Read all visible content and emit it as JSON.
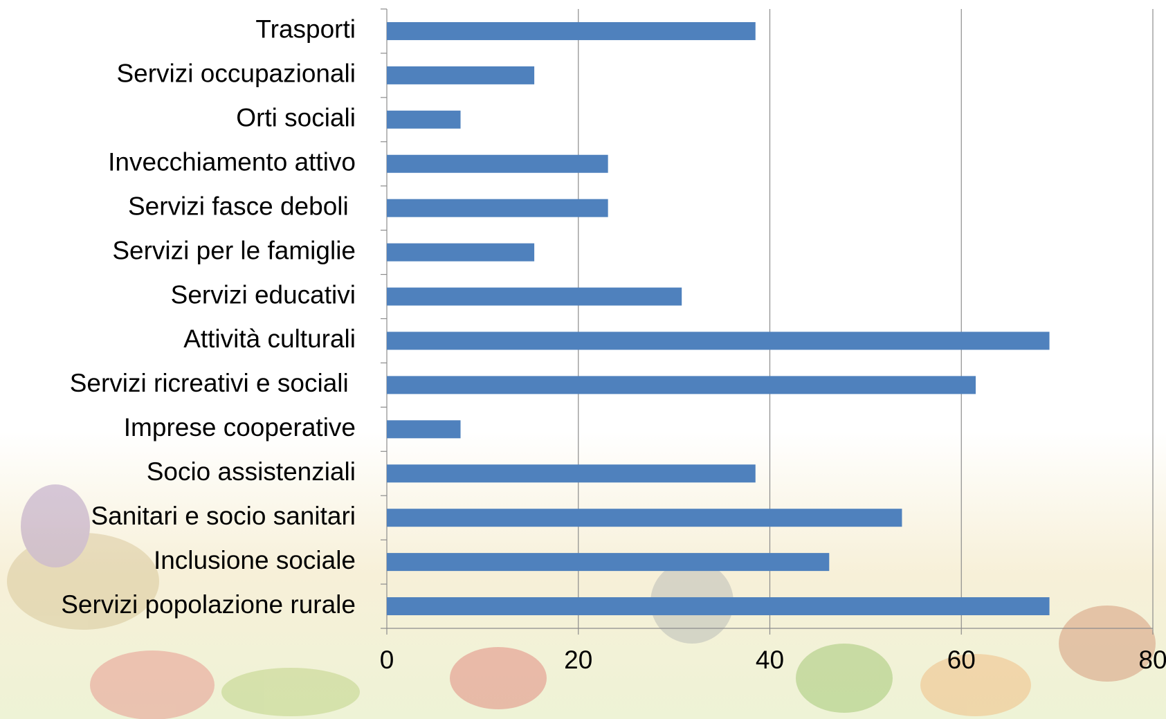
{
  "chart_data": {
    "type": "bar",
    "orientation": "horizontal",
    "categories": [
      "Trasporti",
      "Servizi occupazionali",
      "Orti sociali",
      "Invecchiamento attivo",
      "Servizi fasce deboli ",
      "Servizi per le famiglie",
      "Servizi educativi",
      "Attività culturali",
      "Servizi ricreativi e sociali ",
      "Imprese cooperative",
      "Socio assistenziali",
      "Sanitari e socio sanitari",
      "Inclusione sociale",
      "Servizi popolazione rurale"
    ],
    "values": [
      38.5,
      15.4,
      7.7,
      23.1,
      23.1,
      15.4,
      30.8,
      69.2,
      61.5,
      7.7,
      38.5,
      53.8,
      46.2,
      69.2
    ],
    "color": "#4f81bd",
    "xlim": [
      0,
      80
    ],
    "xticks": [
      0,
      20,
      40,
      60,
      80
    ],
    "grid": true
  }
}
